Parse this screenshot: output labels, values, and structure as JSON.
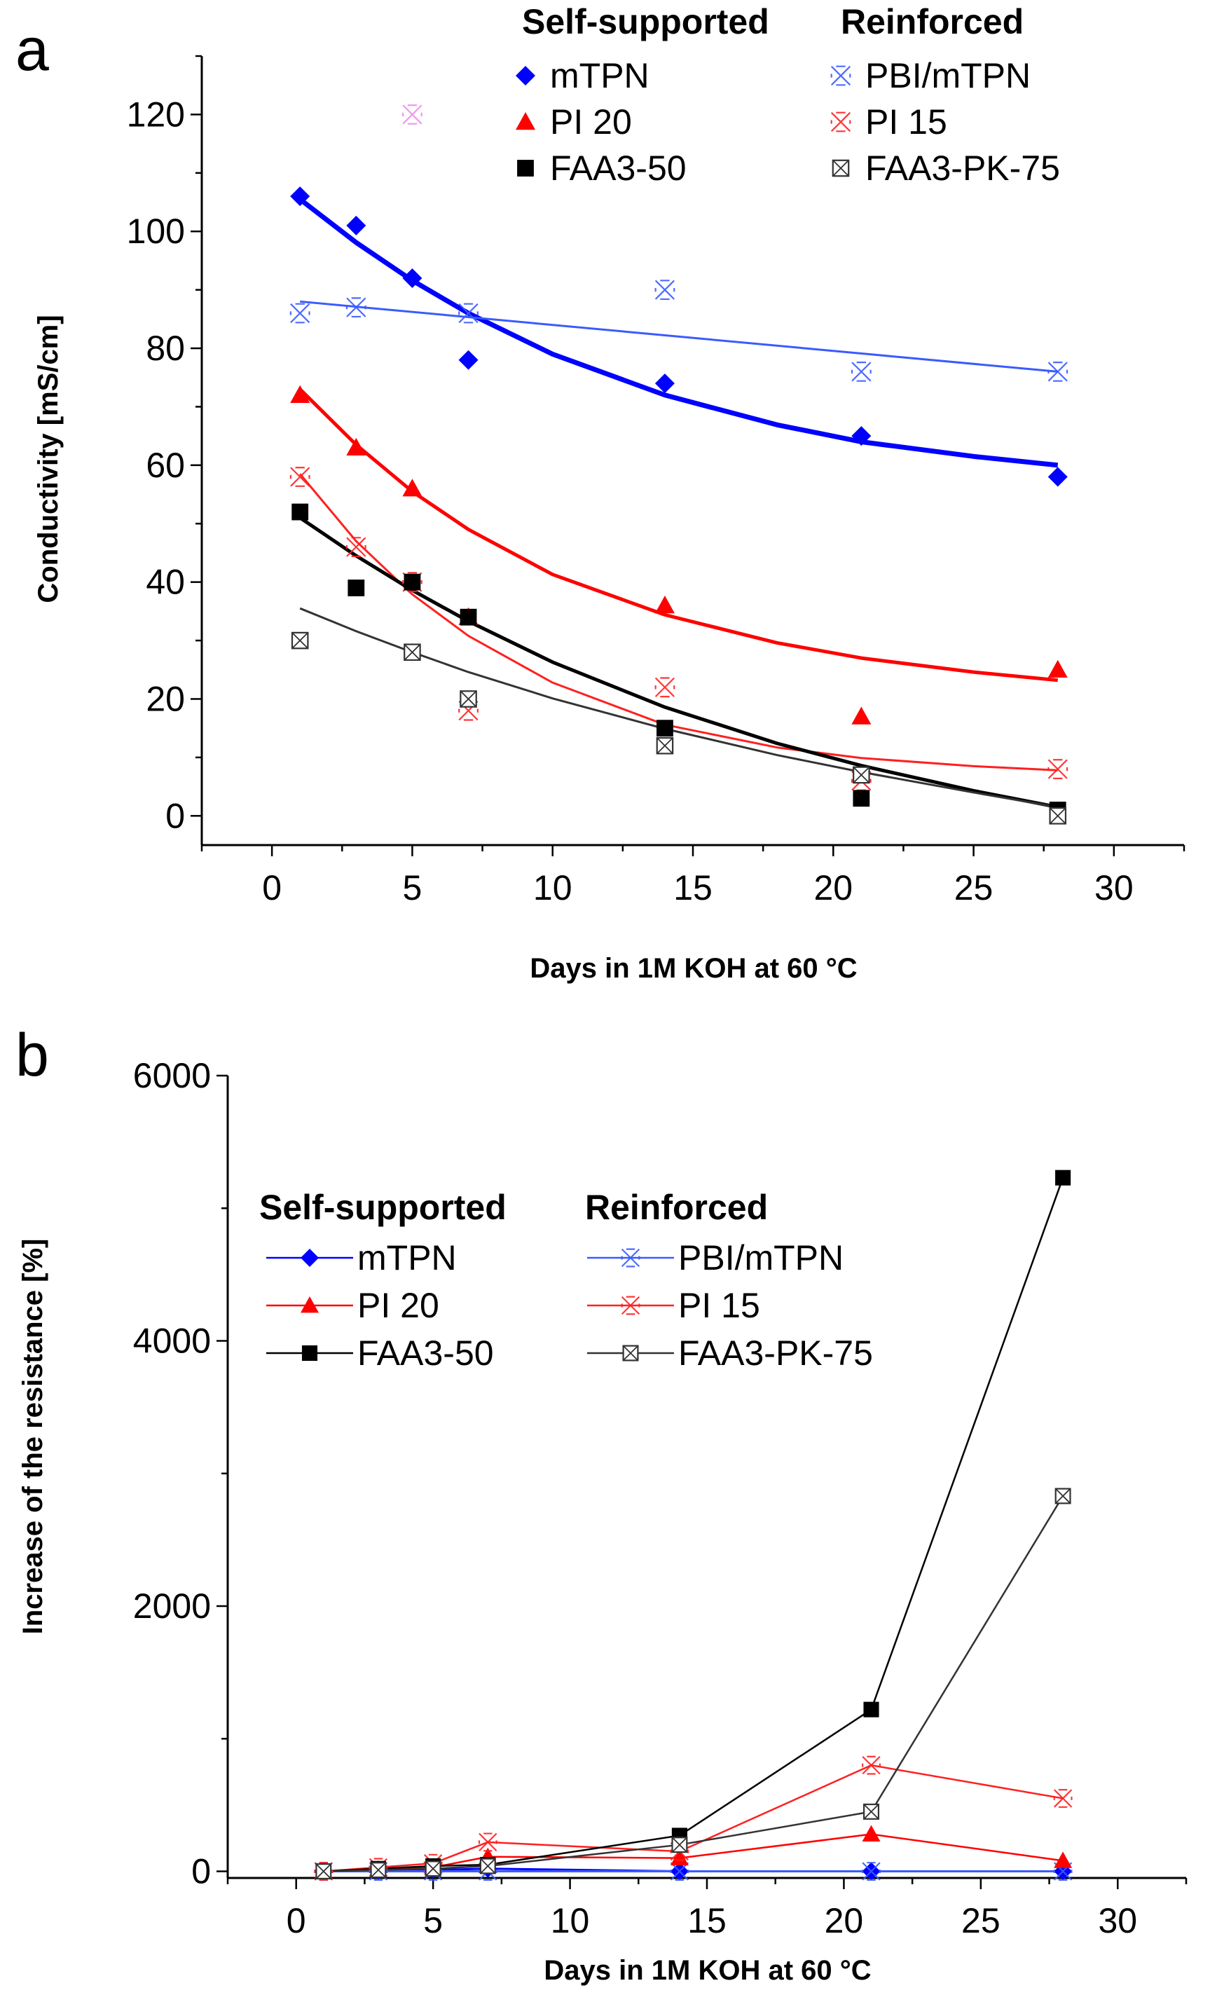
{
  "figure": {
    "panel_a_letter": "a",
    "panel_b_letter": "b"
  },
  "colors": {
    "mTPN": "#0000ff",
    "PBI_mTPN": "#3a5bff",
    "PI20": "#ff0000",
    "PI15": "#ff2020",
    "FAA3_50": "#000000",
    "FAA3_PK_75": "#333333"
  },
  "chart_data": [
    {
      "id": "panel-a",
      "type": "scatter",
      "xlabel": "Days in 1M KOH at 60 °C",
      "ylabel": "Conductivity [mS/cm]",
      "xlim": [
        -2.5,
        32.5
      ],
      "ylim": [
        -5,
        130
      ],
      "xticks": [
        0,
        5,
        10,
        15,
        20,
        25,
        30
      ],
      "yticks": [
        0,
        20,
        40,
        60,
        80,
        100,
        120
      ],
      "legend": {
        "position": "top-right",
        "group_titles": [
          "Self-supported",
          "Reinforced"
        ]
      },
      "series": [
        {
          "name": "mTPN",
          "group": "Self-supported",
          "marker": "diamond",
          "color_key": "mTPN",
          "x": [
            1,
            3,
            5,
            7,
            14,
            21,
            28
          ],
          "y": [
            106,
            101,
            92,
            78,
            74,
            65,
            58
          ],
          "fit": {
            "x": [
              1,
              3,
              5,
              7,
              10,
              14,
              18,
              21,
              25,
              28
            ],
            "y": [
              105.5,
              98.1,
              91.6,
              86.0,
              79.0,
              72.0,
              66.9,
              64.0,
              61.5,
              60.0
            ]
          }
        },
        {
          "name": "PBI/mTPN",
          "group": "Reinforced",
          "marker": "cross-x",
          "color_key": "PBI_mTPN",
          "x": [
            1,
            3,
            5,
            7,
            14,
            21,
            28
          ],
          "y": [
            86,
            87,
            120,
            86,
            90,
            76,
            76
          ],
          "fit": {
            "x": [
              1,
              28
            ],
            "y": [
              88,
              76
            ]
          }
        },
        {
          "name": "PI 20",
          "group": "Self-supported",
          "marker": "triangle",
          "color_key": "PI20",
          "x": [
            1,
            3,
            5,
            7,
            14,
            21,
            28
          ],
          "y": [
            72,
            63,
            56,
            34,
            36,
            17,
            25
          ],
          "fit": {
            "x": [
              1,
              3,
              5,
              7,
              10,
              14,
              18,
              21,
              25,
              28
            ],
            "y": [
              73,
              63.5,
              55.5,
              49.0,
              41.3,
              34.4,
              29.6,
              27.0,
              24.6,
              23.2
            ]
          }
        },
        {
          "name": "PI 15",
          "group": "Reinforced",
          "marker": "cross-x",
          "color_key": "PI15",
          "x": [
            1,
            3,
            5,
            7,
            14,
            21,
            28
          ],
          "y": [
            58,
            46,
            40,
            18,
            22,
            6,
            8
          ],
          "fit": {
            "x": [
              1,
              3,
              5,
              7,
              10,
              14,
              18,
              21,
              25,
              28
            ],
            "y": [
              58.5,
              47.0,
              37.9,
              30.8,
              22.8,
              15.6,
              11.7,
              9.9,
              8.5,
              7.8
            ]
          }
        },
        {
          "name": "FAA3-50",
          "group": "Self-supported",
          "marker": "square",
          "color_key": "FAA3_50",
          "x": [
            1,
            3,
            5,
            7,
            14,
            21,
            28
          ],
          "y": [
            52,
            39,
            40,
            34,
            15,
            3,
            1
          ],
          "fit": {
            "x": [
              1,
              3,
              5,
              7,
              10,
              14,
              18,
              21,
              25,
              28
            ],
            "y": [
              51,
              44.5,
              38.6,
              33.3,
              26.3,
              18.6,
              12.4,
              8.6,
              4.3,
              1.5
            ]
          }
        },
        {
          "name": "FAA3-PK-75",
          "group": "Reinforced",
          "marker": "square-cross",
          "color_key": "FAA3_PK_75",
          "x": [
            1,
            5,
            7,
            14,
            21,
            28
          ],
          "y": [
            30,
            28,
            20,
            12,
            7,
            0
          ],
          "fit": {
            "x": [
              1,
              3,
              5,
              7,
              10,
              14,
              18,
              21,
              25,
              28
            ],
            "y": [
              35.5,
              31.6,
              28.0,
              24.6,
              20.1,
              14.9,
              10.4,
              7.5,
              4.0,
              1.5
            ]
          }
        }
      ]
    },
    {
      "id": "panel-b",
      "type": "line",
      "xlabel": "Days in 1M KOH at 60 °C",
      "ylabel": "Increase of the resistance [%]",
      "xlim": [
        -2.5,
        32.5
      ],
      "ylim": [
        -50,
        6000
      ],
      "xticks": [
        0,
        5,
        10,
        15,
        20,
        25,
        30
      ],
      "yticks": [
        0,
        2000,
        4000,
        6000
      ],
      "legend": {
        "position": "top-left",
        "group_titles": [
          "Self-supported",
          "Reinforced"
        ]
      },
      "series": [
        {
          "name": "mTPN",
          "group": "Self-supported",
          "marker": "diamond",
          "color_key": "mTPN",
          "x": [
            1,
            3,
            5,
            7,
            14,
            21,
            28
          ],
          "y": [
            0,
            5,
            10,
            20,
            0,
            0,
            0
          ]
        },
        {
          "name": "PBI/mTPN",
          "group": "Reinforced",
          "marker": "cross-x",
          "color_key": "PBI_mTPN",
          "x": [
            1,
            3,
            5,
            7,
            14,
            21,
            28
          ],
          "y": [
            0,
            0,
            0,
            0,
            0,
            0,
            0
          ]
        },
        {
          "name": "PI 20",
          "group": "Self-supported",
          "marker": "triangle",
          "color_key": "PI20",
          "x": [
            1,
            3,
            5,
            7,
            14,
            21,
            28
          ],
          "y": [
            0,
            15,
            30,
            110,
            100,
            280,
            80
          ]
        },
        {
          "name": "PI 15",
          "group": "Reinforced",
          "marker": "cross-x",
          "color_key": "PI15",
          "x": [
            1,
            3,
            5,
            7,
            14,
            21,
            28
          ],
          "y": [
            0,
            30,
            60,
            220,
            150,
            800,
            550
          ]
        },
        {
          "name": "FAA3-50",
          "group": "Self-supported",
          "marker": "square",
          "color_key": "FAA3_50",
          "x": [
            1,
            3,
            5,
            7,
            14,
            21,
            28
          ],
          "y": [
            0,
            20,
            40,
            50,
            270,
            1220,
            5230
          ]
        },
        {
          "name": "FAA3-PK-75",
          "group": "Reinforced",
          "marker": "square-cross",
          "color_key": "FAA3_PK_75",
          "x": [
            1,
            3,
            5,
            7,
            14,
            21,
            28
          ],
          "y": [
            0,
            10,
            20,
            40,
            200,
            450,
            2830
          ]
        }
      ]
    }
  ]
}
